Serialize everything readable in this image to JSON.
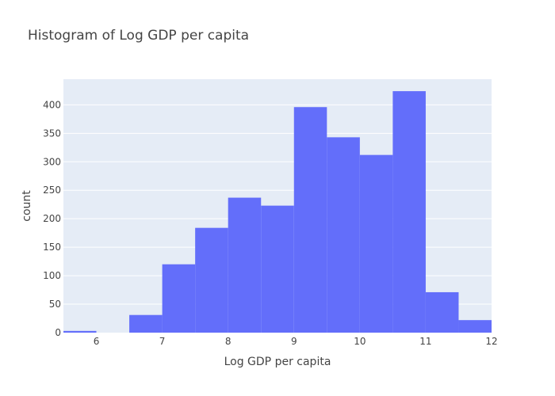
{
  "chart_data": {
    "type": "histogram",
    "title": "Histogram of Log GDP per capita",
    "xlabel": "Log GDP per capita",
    "ylabel": "count",
    "xlim": [
      5.5,
      12
    ],
    "ylim": [
      0,
      445
    ],
    "x_ticks": [
      6,
      7,
      8,
      9,
      10,
      11,
      12
    ],
    "y_ticks": [
      0,
      50,
      100,
      150,
      200,
      250,
      300,
      350,
      400
    ],
    "grid": true,
    "legend": false,
    "bar_color": "#636efa",
    "plot_background": "#e5ecf6",
    "bins": [
      {
        "x0": 5.5,
        "x1": 6.0,
        "count": 3
      },
      {
        "x0": 6.0,
        "x1": 6.5,
        "count": 0
      },
      {
        "x0": 6.5,
        "x1": 7.0,
        "count": 31
      },
      {
        "x0": 7.0,
        "x1": 7.5,
        "count": 120
      },
      {
        "x0": 7.5,
        "x1": 8.0,
        "count": 184
      },
      {
        "x0": 8.0,
        "x1": 8.5,
        "count": 237
      },
      {
        "x0": 8.5,
        "x1": 9.0,
        "count": 223
      },
      {
        "x0": 9.0,
        "x1": 9.5,
        "count": 396
      },
      {
        "x0": 9.5,
        "x1": 10.0,
        "count": 343
      },
      {
        "x0": 10.0,
        "x1": 10.5,
        "count": 312
      },
      {
        "x0": 10.5,
        "x1": 11.0,
        "count": 424
      },
      {
        "x0": 11.0,
        "x1": 11.5,
        "count": 71
      },
      {
        "x0": 11.5,
        "x1": 12.0,
        "count": 22
      }
    ]
  }
}
